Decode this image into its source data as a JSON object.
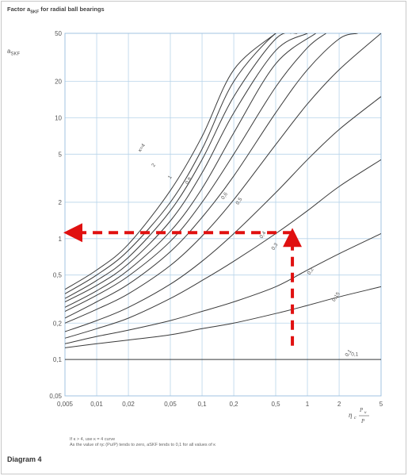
{
  "chart_data": {
    "type": "line",
    "title": "Factor aSKF for radial ball bearings",
    "ylabel": "aSKF",
    "xlabel": "ηc Pu/P",
    "x_scale": "log",
    "y_scale": "log",
    "xlim": [
      0.005,
      5
    ],
    "ylim": [
      0.05,
      50
    ],
    "x_ticks": [
      "0,005",
      "0,01",
      "0,02",
      "0,05",
      "0,1",
      "0,2",
      "0,5",
      "1",
      "2",
      "5"
    ],
    "y_ticks": [
      "0,05",
      "0,1",
      "0,2",
      "0,5",
      "1",
      "2",
      "5",
      "10",
      "20",
      "50"
    ],
    "grid": true,
    "series": [
      {
        "name": "κ=4",
        "x": [
          0.005,
          0.01,
          0.02,
          0.05,
          0.1,
          0.2,
          0.5
        ],
        "y": [
          0.38,
          0.55,
          0.9,
          2.5,
          7.0,
          25,
          50
        ]
      },
      {
        "name": "2",
        "x": [
          0.005,
          0.01,
          0.02,
          0.05,
          0.1,
          0.2,
          0.5,
          0.7
        ],
        "y": [
          0.35,
          0.5,
          0.8,
          2.0,
          5.5,
          20,
          50,
          50
        ]
      },
      {
        "name": "1",
        "x": [
          0.005,
          0.01,
          0.02,
          0.05,
          0.1,
          0.2,
          0.5,
          0.8
        ],
        "y": [
          0.32,
          0.45,
          0.7,
          1.7,
          4.5,
          15,
          45,
          50
        ]
      },
      {
        "name": "0,8",
        "x": [
          0.005,
          0.01,
          0.02,
          0.05,
          0.1,
          0.2,
          0.5,
          1
        ],
        "y": [
          0.3,
          0.41,
          0.62,
          1.4,
          3.5,
          11,
          36,
          50
        ]
      },
      {
        "name": "0,6",
        "x": [
          0.005,
          0.01,
          0.02,
          0.05,
          0.1,
          0.2,
          0.5,
          1.2
        ],
        "y": [
          0.27,
          0.37,
          0.55,
          1.15,
          2.6,
          7.5,
          28,
          50
        ]
      },
      {
        "name": "0,5",
        "x": [
          0.005,
          0.01,
          0.02,
          0.05,
          0.1,
          0.2,
          0.5,
          1,
          1.5
        ],
        "y": [
          0.25,
          0.34,
          0.49,
          0.95,
          2.0,
          5.0,
          18,
          38,
          50
        ]
      },
      {
        "name": "0,4",
        "x": [
          0.005,
          0.01,
          0.02,
          0.05,
          0.1,
          0.2,
          0.5,
          1,
          2,
          3
        ],
        "y": [
          0.22,
          0.3,
          0.42,
          0.78,
          1.5,
          3.3,
          11,
          25,
          45,
          50
        ]
      },
      {
        "name": "0,3",
        "x": [
          0.005,
          0.01,
          0.02,
          0.05,
          0.1,
          0.2,
          0.5,
          1,
          2,
          5
        ],
        "y": [
          0.2,
          0.26,
          0.35,
          0.6,
          1.05,
          2.1,
          6,
          13,
          25,
          50
        ]
      },
      {
        "name": "0,2",
        "x": [
          0.005,
          0.01,
          0.02,
          0.05,
          0.1,
          0.2,
          0.5,
          1,
          2,
          5
        ],
        "y": [
          0.17,
          0.21,
          0.27,
          0.42,
          0.65,
          1.1,
          2.4,
          4.5,
          8,
          15
        ]
      },
      {
        "name": "0,15",
        "x": [
          0.005,
          0.01,
          0.02,
          0.05,
          0.1,
          0.2,
          0.5,
          1,
          2,
          5
        ],
        "y": [
          0.15,
          0.18,
          0.22,
          0.32,
          0.45,
          0.65,
          1.1,
          1.7,
          2.7,
          4.5
        ]
      },
      {
        "name": "0,1",
        "x": [
          0.005,
          0.01,
          0.02,
          0.05,
          0.1,
          0.2,
          0.5,
          1,
          2,
          5
        ],
        "y": [
          0.135,
          0.155,
          0.175,
          0.21,
          0.25,
          0.3,
          0.4,
          0.55,
          0.75,
          1.1
        ]
      },
      {
        "name": "",
        "x": [
          0.005,
          0.01,
          0.02,
          0.05,
          0.1,
          0.2,
          0.5,
          1,
          2,
          5
        ],
        "y": [
          0.125,
          0.135,
          0.145,
          0.16,
          0.18,
          0.2,
          0.24,
          0.28,
          0.33,
          0.4
        ]
      },
      {
        "name": "0,1",
        "x": [
          0.005,
          5
        ],
        "y": [
          0.1,
          0.1
        ]
      }
    ],
    "annotations": {
      "arrow_color": "#e01010",
      "arrow_path_data": [
        [
          0.72,
          0.13
        ],
        [
          0.72,
          1.12
        ],
        [
          0.005,
          1.12
        ]
      ]
    }
  },
  "note": {
    "line1": "If κ > 4, use κ = 4 curve",
    "line2": "As the value of ηc (Pu/P) tends to zero, aSKF tends to 0,1 for all values of κ"
  },
  "diagram_label": "Diagram 4"
}
